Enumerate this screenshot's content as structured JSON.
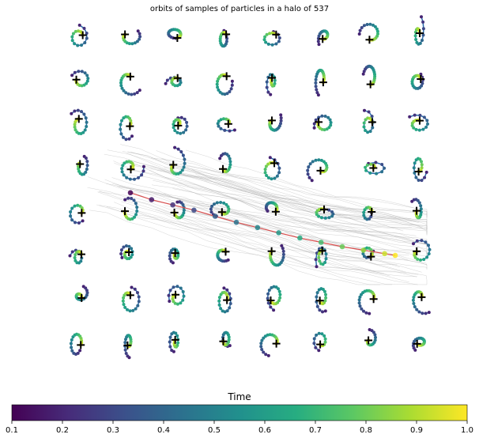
{
  "chart_data": {
    "type": "scatter",
    "title": "orbits of samples of particles in a halo of 537",
    "grid": false,
    "panels": {
      "rows": 8,
      "cols": 8
    },
    "colorbar": {
      "label": "Time",
      "min": 0.1,
      "max": 1.0,
      "ticks": [
        "0.1",
        "0.2",
        "0.3",
        "0.4",
        "0.5",
        "0.6",
        "0.7",
        "0.8",
        "0.9",
        "1.0"
      ],
      "colormap": [
        "#440154",
        "#472c7a",
        "#3b518b",
        "#2c718e",
        "#21908d",
        "#27ad81",
        "#5cc863",
        "#aadc32",
        "#fde725"
      ]
    },
    "halo_track": {
      "points": [
        [
          0.0,
          0.92
        ],
        [
          0.08,
          0.84
        ],
        [
          0.16,
          0.78
        ],
        [
          0.24,
          0.72
        ],
        [
          0.32,
          0.65
        ],
        [
          0.4,
          0.58
        ],
        [
          0.48,
          0.52
        ],
        [
          0.56,
          0.46
        ],
        [
          0.64,
          0.4
        ],
        [
          0.72,
          0.35
        ],
        [
          0.8,
          0.3
        ],
        [
          0.88,
          0.26
        ],
        [
          0.96,
          0.22
        ],
        [
          1.0,
          0.2
        ]
      ],
      "line_color": "#d94f4f"
    },
    "overlay_colors": {
      "orbit_line": "#2a6cad",
      "center_marker": "#000000",
      "background_tracks": "#a0a0a0"
    }
  }
}
